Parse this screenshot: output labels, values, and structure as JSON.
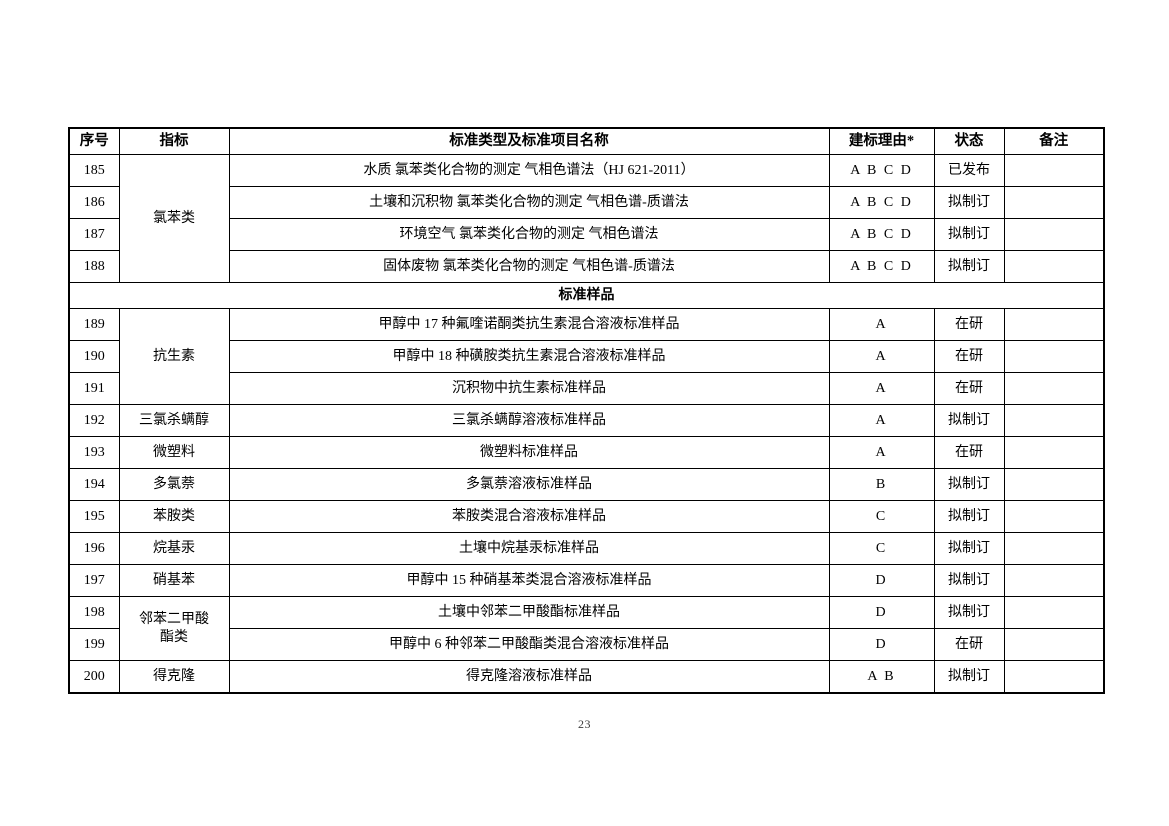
{
  "page_number": "23",
  "table": {
    "columns": [
      "序号",
      "指标",
      "标准类型及标准项目名称",
      "建标理由*",
      "状态",
      "备注"
    ],
    "rows": [
      {
        "no": "185",
        "indicator": "氯苯类",
        "indicator_rowspan": 4,
        "name": "水质  氯苯类化合物的测定  气相色谱法（HJ 621-2011）",
        "reason": "A B C D",
        "status": "已发布",
        "remark": ""
      },
      {
        "no": "186",
        "name": "土壤和沉积物  氯苯类化合物的测定  气相色谱-质谱法",
        "reason": "A B C D",
        "status": "拟制订",
        "remark": ""
      },
      {
        "no": "187",
        "name": "环境空气  氯苯类化合物的测定  气相色谱法",
        "reason": "A B C D",
        "status": "拟制订",
        "remark": ""
      },
      {
        "no": "188",
        "name": "固体废物  氯苯类化合物的测定  气相色谱-质谱法",
        "reason": "A B C D",
        "status": "拟制订",
        "remark": ""
      },
      {
        "type": "section",
        "label": "标准样品"
      },
      {
        "no": "189",
        "indicator": "抗生素",
        "indicator_rowspan": 3,
        "name": "甲醇中 17 种氟喹诺酮类抗生素混合溶液标准样品",
        "reason": "A",
        "status": "在研",
        "remark": ""
      },
      {
        "no": "190",
        "name": "甲醇中 18 种磺胺类抗生素混合溶液标准样品",
        "reason": "A",
        "status": "在研",
        "remark": ""
      },
      {
        "no": "191",
        "name": "沉积物中抗生素标准样品",
        "reason": "A",
        "status": "在研",
        "remark": ""
      },
      {
        "no": "192",
        "indicator": "三氯杀螨醇",
        "indicator_rowspan": 1,
        "name": "三氯杀螨醇溶液标准样品",
        "reason": "A",
        "status": "拟制订",
        "remark": ""
      },
      {
        "no": "193",
        "indicator": "微塑料",
        "indicator_rowspan": 1,
        "name": "微塑料标准样品",
        "reason": "A",
        "status": "在研",
        "remark": ""
      },
      {
        "no": "194",
        "indicator": "多氯萘",
        "indicator_rowspan": 1,
        "name": "多氯萘溶液标准样品",
        "reason": "B",
        "status": "拟制订",
        "remark": ""
      },
      {
        "no": "195",
        "indicator": "苯胺类",
        "indicator_rowspan": 1,
        "name": "苯胺类混合溶液标准样品",
        "reason": "C",
        "status": "拟制订",
        "remark": ""
      },
      {
        "no": "196",
        "indicator": "烷基汞",
        "indicator_rowspan": 1,
        "name": "土壤中烷基汞标准样品",
        "reason": "C",
        "status": "拟制订",
        "remark": ""
      },
      {
        "no": "197",
        "indicator": "硝基苯",
        "indicator_rowspan": 1,
        "name": "甲醇中 15 种硝基苯类混合溶液标准样品",
        "reason": "D",
        "status": "拟制订",
        "remark": ""
      },
      {
        "no": "198",
        "indicator": "邻苯二甲酸\n酯类",
        "indicator_rowspan": 2,
        "name": "土壤中邻苯二甲酸酯标准样品",
        "reason": "D",
        "status": "拟制订",
        "remark": ""
      },
      {
        "no": "199",
        "name": "甲醇中 6 种邻苯二甲酸酯类混合溶液标准样品",
        "reason": "D",
        "status": "在研",
        "remark": ""
      },
      {
        "no": "200",
        "indicator": "得克隆",
        "indicator_rowspan": 1,
        "name": "得克隆溶液标准样品",
        "reason": "A B",
        "status": "拟制订",
        "remark": ""
      }
    ]
  }
}
